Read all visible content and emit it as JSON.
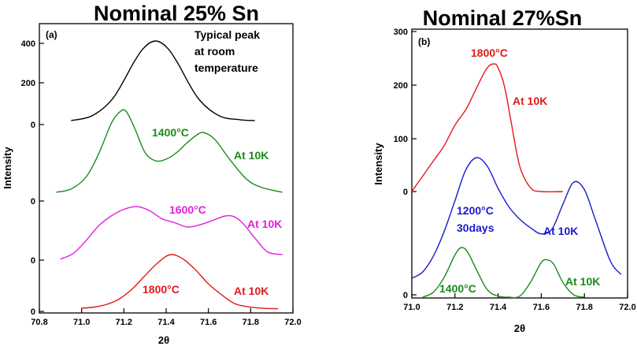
{
  "chart_data": [
    {
      "type": "line",
      "panel_label": "(a)",
      "title": "Nominal 25% Sn",
      "xlabel": "2θ",
      "ylabel": "Intensity",
      "xlim": [
        70.8,
        72.0
      ],
      "xticks": [
        "70.8",
        "71.0",
        "71.2",
        "71.4",
        "71.6",
        "71.8",
        "72.0"
      ],
      "yticks": [
        "400",
        "200",
        "0",
        "0",
        "0",
        "0"
      ],
      "grid": false,
      "series": [
        {
          "color": "#000000",
          "x": [
            70.95,
            71.05,
            71.15,
            71.25,
            71.3,
            71.35,
            71.4,
            71.45,
            71.55,
            71.65,
            71.75,
            71.82
          ],
          "y": [
            0.02,
            0.08,
            0.3,
            0.75,
            0.93,
            1.0,
            0.93,
            0.75,
            0.3,
            0.08,
            0.03,
            0.02
          ]
        },
        {
          "color": "#1a8a1a",
          "x": [
            70.88,
            70.95,
            71.02,
            71.08,
            71.14,
            71.18,
            71.21,
            71.25,
            71.3,
            71.35,
            71.4,
            71.45,
            71.5,
            71.55,
            71.58,
            71.63,
            71.7,
            71.78,
            71.85,
            71.95
          ],
          "y": [
            0.02,
            0.06,
            0.2,
            0.48,
            0.85,
            0.99,
            1.0,
            0.8,
            0.5,
            0.4,
            0.42,
            0.5,
            0.62,
            0.72,
            0.74,
            0.66,
            0.42,
            0.18,
            0.08,
            0.02
          ]
        },
        {
          "color": "#e020e0",
          "x": [
            70.9,
            70.96,
            71.02,
            71.08,
            71.14,
            71.2,
            71.26,
            71.32,
            71.38,
            71.44,
            71.5,
            71.56,
            71.62,
            71.68,
            71.72,
            71.76,
            71.82,
            71.88,
            71.95
          ],
          "y": [
            0.02,
            0.12,
            0.35,
            0.62,
            0.8,
            0.92,
            0.97,
            0.9,
            0.75,
            0.68,
            0.6,
            0.64,
            0.72,
            0.8,
            0.79,
            0.68,
            0.4,
            0.15,
            0.1
          ]
        },
        {
          "color": "#e01a1a",
          "x": [
            71.0,
            71.06,
            71.12,
            71.18,
            71.24,
            71.3,
            71.36,
            71.42,
            71.48,
            71.54,
            71.6,
            71.66,
            71.72,
            71.78,
            71.85,
            71.93
          ],
          "y": [
            0.03,
            0.05,
            0.1,
            0.2,
            0.38,
            0.62,
            0.85,
            1.0,
            0.92,
            0.72,
            0.47,
            0.28,
            0.12,
            0.06,
            0.03,
            0.02
          ]
        }
      ],
      "annotations": [
        {
          "text": "Typical peak",
          "color": "#000000"
        },
        {
          "text": "at room",
          "color": "#000000"
        },
        {
          "text": "temperature",
          "color": "#000000"
        },
        {
          "text": "1400°C",
          "color": "#1a8a1a"
        },
        {
          "text": "At 10K",
          "color": "#1a8a1a"
        },
        {
          "text": "1600°C",
          "color": "#e020e0"
        },
        {
          "text": "At 10K",
          "color": "#e020e0"
        },
        {
          "text": "1800°C",
          "color": "#e01a1a"
        },
        {
          "text": "At 10K",
          "color": "#e01a1a"
        }
      ]
    },
    {
      "type": "line",
      "panel_label": "(b)",
      "title": "Nominal 27%Sn",
      "xlabel": "2θ",
      "ylabel": "Intensity",
      "xlim": [
        71.0,
        72.0
      ],
      "xticks": [
        "71.0",
        "71.2",
        "71.4",
        "71.6",
        "71.8",
        "72.0"
      ],
      "yticks": [
        "300",
        "200",
        "100",
        "0",
        "0"
      ],
      "grid": false,
      "series": [
        {
          "color": "#e01a1a",
          "x": [
            71.0,
            71.05,
            71.1,
            71.15,
            71.2,
            71.25,
            71.28,
            71.32,
            71.35,
            71.38,
            71.4,
            71.43,
            71.46,
            71.5,
            71.55,
            71.6,
            71.7
          ],
          "y": [
            0.0,
            0.12,
            0.24,
            0.36,
            0.52,
            0.64,
            0.74,
            0.88,
            0.97,
            1.0,
            0.97,
            0.82,
            0.55,
            0.2,
            0.03,
            0.0,
            0.0
          ]
        },
        {
          "color": "#1a1acc",
          "x": [
            71.0,
            71.05,
            71.1,
            71.15,
            71.2,
            71.25,
            71.3,
            71.35,
            71.4,
            71.45,
            71.5,
            71.55,
            71.6,
            71.65,
            71.7,
            71.75,
            71.8,
            71.85,
            71.92,
            71.97
          ],
          "y": [
            0.02,
            0.07,
            0.2,
            0.4,
            0.65,
            0.9,
            1.0,
            0.93,
            0.75,
            0.6,
            0.5,
            0.43,
            0.38,
            0.42,
            0.62,
            0.8,
            0.74,
            0.5,
            0.16,
            0.05
          ]
        },
        {
          "color": "#1a8a1a",
          "x": [
            71.05,
            71.1,
            71.15,
            71.2,
            71.23,
            71.26,
            71.3,
            71.35,
            71.4,
            71.45,
            71.5,
            71.55,
            71.6,
            71.63,
            71.66,
            71.7,
            71.75,
            71.8
          ],
          "y": [
            0.0,
            0.1,
            0.4,
            0.85,
            1.0,
            0.9,
            0.55,
            0.15,
            0.02,
            0.0,
            0.02,
            0.3,
            0.7,
            0.75,
            0.65,
            0.3,
            0.05,
            0.0
          ]
        }
      ],
      "annotations": [
        {
          "text": "1800°C",
          "color": "#e01a1a"
        },
        {
          "text": "At 10K",
          "color": "#e01a1a"
        },
        {
          "text": "1200°C",
          "color": "#1a1acc"
        },
        {
          "text": "30days",
          "color": "#1a1acc"
        },
        {
          "text": "At 10K",
          "color": "#1a1acc"
        },
        {
          "text": "1400°C",
          "color": "#1a8a1a"
        },
        {
          "text": "At 10K",
          "color": "#1a8a1a"
        }
      ]
    }
  ]
}
